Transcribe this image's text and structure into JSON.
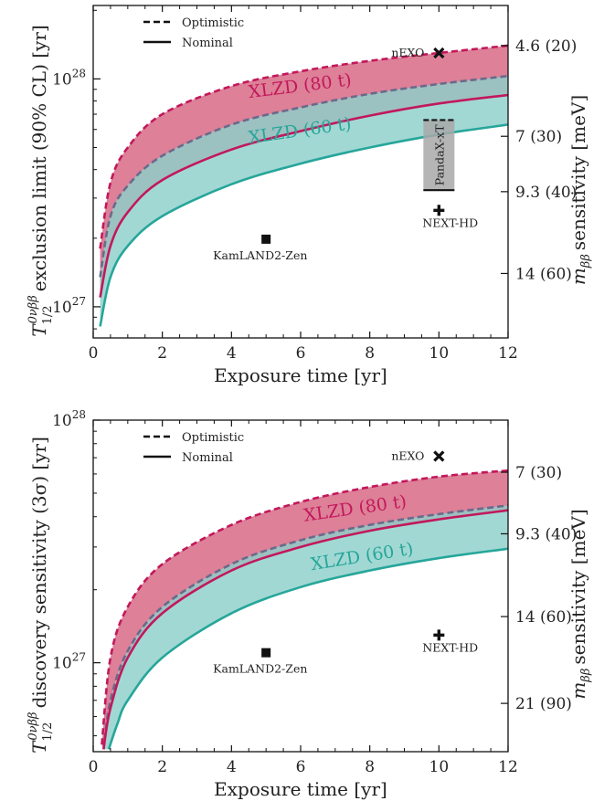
{
  "chart_data": [
    {
      "type": "area",
      "title": "",
      "xlabel": "Exposure time [yr]",
      "ylabel": "T_{1/2}^{0νββ} exclusion limit (90% CL) [yr]",
      "ylabel_right": "m_ββ sensitivity [meV]",
      "xlim": [
        0,
        12
      ],
      "ylim": [
        7.3e+26,
        2.1e+28
      ],
      "yscale": "log",
      "x_ticks": [
        "0",
        "2",
        "4",
        "6",
        "8",
        "10",
        "12"
      ],
      "y_ticks": [
        {
          "value": 1e+27,
          "label_base": "10",
          "label_exp": "27"
        },
        {
          "value": 1e+28,
          "label_base": "10",
          "label_exp": "28"
        }
      ],
      "right_ticks": [
        {
          "value": 1.4e+28,
          "label": "4.6 (20)"
        },
        {
          "value": 5.6e+27,
          "label": "7 (30)"
        },
        {
          "value": 3.2e+27,
          "label": "9.3 (40)"
        },
        {
          "value": 1.4e+27,
          "label": "14 (60)"
        }
      ],
      "legend": {
        "position": "top-left",
        "entries": [
          {
            "label": "Optimistic",
            "style": "dashed"
          },
          {
            "label": "Nominal",
            "style": "solid"
          }
        ]
      },
      "series": [
        {
          "name": "XLZD (80 t)",
          "color": "#c2185b",
          "fill": "#dd8098",
          "optimistic": {
            "x": [
              0.2,
              0.5,
              1,
              2,
              4,
              6,
              8,
              10,
              12
            ],
            "y": [
              1.8e+27,
              3.5e+27,
              5e+27,
              7e+27,
              9.3e+27,
              1.08e+28,
              1.2e+28,
              1.3e+28,
              1.4e+28
            ]
          },
          "nominal": {
            "x": [
              0.2,
              0.5,
              1,
              2,
              4,
              6,
              8,
              10,
              12
            ],
            "y": [
              1.1e+27,
              1.85e+27,
              2.6e+27,
              3.6e+27,
              4.9e+27,
              5.9e+27,
              6.9e+27,
              7.8e+27,
              8.5e+27
            ]
          }
        },
        {
          "name": "XLZD (60 t)",
          "color": "#26a69a",
          "fill": "#8dcfca",
          "optimistic": {
            "x": [
              0.2,
              0.5,
              1,
              2,
              4,
              6,
              8,
              10,
              12
            ],
            "y": [
              1.35e+27,
              2.5e+27,
              3.4e+27,
              4.6e+27,
              6.3e+27,
              7.5e+27,
              8.6e+27,
              9.5e+27,
              1.03e+28
            ]
          },
          "nominal": {
            "x": [
              0.2,
              0.5,
              1,
              2,
              4,
              6,
              8,
              10,
              12
            ],
            "y": [
              8.2e+26,
              1.35e+27,
              1.85e+27,
              2.5e+27,
              3.45e+27,
              4.25e+27,
              5e+27,
              5.7e+27,
              6.3e+27
            ]
          }
        }
      ],
      "band_labels": [
        {
          "text": "XLZD (80 t)",
          "color": "#c2185b",
          "x": 6.0,
          "y": 8.8e+27,
          "angle": -7
        },
        {
          "text": "XLZD (60 t)",
          "color": "#26a69a",
          "x": 6.0,
          "y": 5.6e+27,
          "angle": -8
        }
      ],
      "experiments": [
        {
          "name": "nEXO",
          "x": 10,
          "y": 1.3e+28,
          "marker": "x",
          "label_dx": -52,
          "label_dy": 4
        },
        {
          "name": "NEXT-HD",
          "x": 10,
          "y": 2.65e+27,
          "marker": "plus",
          "label_dx": -18,
          "label_dy": 18
        },
        {
          "name": "KamLAND2-Zen",
          "x": 5,
          "y": 1.98e+27,
          "marker": "square",
          "label_dx": -58,
          "label_dy": 22
        }
      ],
      "pandax": {
        "name": "PandaX-xT",
        "x": 10,
        "y_low": 3.25e+27,
        "y_high": 6.6e+27,
        "fill": "#a8a8a8"
      }
    },
    {
      "type": "area",
      "title": "",
      "xlabel": "Exposure time [yr]",
      "ylabel": "T_{1/2}^{0νββ} discovery sensitivity (3σ) [yr]",
      "ylabel_right": "m_ββ sensitivity [meV]",
      "xlim": [
        0,
        12
      ],
      "ylim": [
        4.3e+26,
        1e+28
      ],
      "yscale": "log",
      "x_ticks": [
        "0",
        "2",
        "4",
        "6",
        "8",
        "10",
        "12"
      ],
      "y_ticks": [
        {
          "value": 1e+27,
          "label_base": "10",
          "label_exp": "27"
        },
        {
          "value": 1e+28,
          "label_base": "10",
          "label_exp": "28"
        }
      ],
      "right_ticks": [
        {
          "value": 6.1e+27,
          "label": "7 (30)"
        },
        {
          "value": 3.4e+27,
          "label": "9.3 (40)"
        },
        {
          "value": 1.55e+27,
          "label": "14 (60)"
        },
        {
          "value": 6.8e+26,
          "label": "21 (90)"
        }
      ],
      "legend": {
        "position": "top-left",
        "entries": [
          {
            "label": "Optimistic",
            "style": "dashed"
          },
          {
            "label": "Nominal",
            "style": "solid"
          }
        ]
      },
      "series": [
        {
          "name": "XLZD (80 t)",
          "color": "#c2185b",
          "fill": "#dd8098",
          "optimistic": {
            "x": [
              0.25,
              0.5,
              1,
              2,
              4,
              6,
              8,
              10,
              12
            ],
            "y": [
              4.6e+26,
              1.05e+27,
              1.7e+27,
              2.55e+27,
              3.7e+27,
              4.6e+27,
              5.3e+27,
              5.85e+27,
              6.2e+27
            ]
          },
          "nominal": {
            "x": [
              0.3,
              0.5,
              1,
              2,
              4,
              6,
              8,
              10,
              12
            ],
            "y": [
              4.4e+26,
              6.5e+26,
              1.05e+27,
              1.6e+27,
              2.4e+27,
              3e+27,
              3.5e+27,
              3.9e+27,
              4.25e+27
            ]
          }
        },
        {
          "name": "XLZD (60 t)",
          "color": "#26a69a",
          "fill": "#8dcfca",
          "optimistic": {
            "x": [
              0.3,
              0.5,
              1,
              2,
              4,
              6,
              8,
              10,
              12
            ],
            "y": [
              4.4e+26,
              7e+26,
              1.12e+27,
              1.7e+27,
              2.55e+27,
              3.2e+27,
              3.7e+27,
              4.1e+27,
              4.45e+27
            ]
          },
          "nominal": {
            "x": [
              0.45,
              0.7,
              1,
              2,
              4,
              6,
              8,
              10,
              12
            ],
            "y": [
              4.4e+26,
              5.6e+26,
              7e+26,
              1.05e+27,
              1.6e+27,
              2.05e+27,
              2.4e+27,
              2.7e+27,
              2.95e+27
            ]
          }
        }
      ],
      "band_labels": [
        {
          "text": "XLZD (80 t)",
          "color": "#c2185b",
          "x": 7.6,
          "y": 4.1e+27,
          "angle": -8
        },
        {
          "text": "XLZD (60 t)",
          "color": "#26a69a",
          "x": 7.8,
          "y": 2.6e+27,
          "angle": -9
        }
      ],
      "experiments": [
        {
          "name": "nEXO",
          "x": 10,
          "y": 7.1e+27,
          "marker": "x",
          "label_dx": -52,
          "label_dy": 4
        },
        {
          "name": "NEXT-HD",
          "x": 10,
          "y": 1.3e+27,
          "marker": "plus",
          "label_dx": -18,
          "label_dy": 18
        },
        {
          "name": "KamLAND2-Zen",
          "x": 5,
          "y": 1.1e+27,
          "marker": "square",
          "label_dx": -58,
          "label_dy": 22
        }
      ]
    }
  ]
}
